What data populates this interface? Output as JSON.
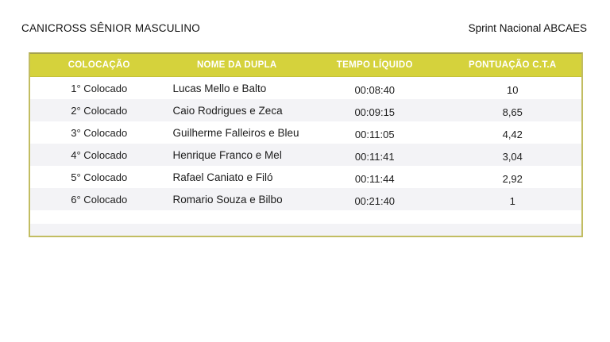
{
  "page": {
    "title_left": "CANICROSS SÊNIOR MASCULINO",
    "title_right": "Sprint Nacional ABCAES"
  },
  "table": {
    "columns": [
      "COLOCAÇÃO",
      "NOME DA DUPLA",
      "TEMPO LÍQUIDO",
      "PONTUAÇÃO C.T.A"
    ],
    "rows": [
      {
        "colocacao": "1° Colocado",
        "nome": "Lucas Mello e Balto",
        "tempo": "00:08:40",
        "pontuacao": "10"
      },
      {
        "colocacao": "2° Colocado",
        "nome": "Caio Rodrigues e Zeca",
        "tempo": "00:09:15",
        "pontuacao": "8,65"
      },
      {
        "colocacao": "3° Colocado",
        "nome": "Guilherme Falleiros e Bleu",
        "tempo": "00:11:05",
        "pontuacao": "4,42"
      },
      {
        "colocacao": "4° Colocado",
        "nome": "Henrique Franco e Mel",
        "tempo": "00:11:41",
        "pontuacao": "3,04"
      },
      {
        "colocacao": "5° Colocado",
        "nome": "Rafael Caniato e Filó",
        "tempo": "00:11:44",
        "pontuacao": "2,92"
      },
      {
        "colocacao": "6° Colocado",
        "nome": "Romario Souza e Bilbo",
        "tempo": "00:21:40",
        "pontuacao": "1"
      }
    ]
  },
  "colors": {
    "header_bg": "#d5d23c",
    "header_text": "#ffffff",
    "border_outer": "#c2bd62",
    "border_top_dark": "#a5a24e",
    "stripe": "#f3f3f6"
  }
}
